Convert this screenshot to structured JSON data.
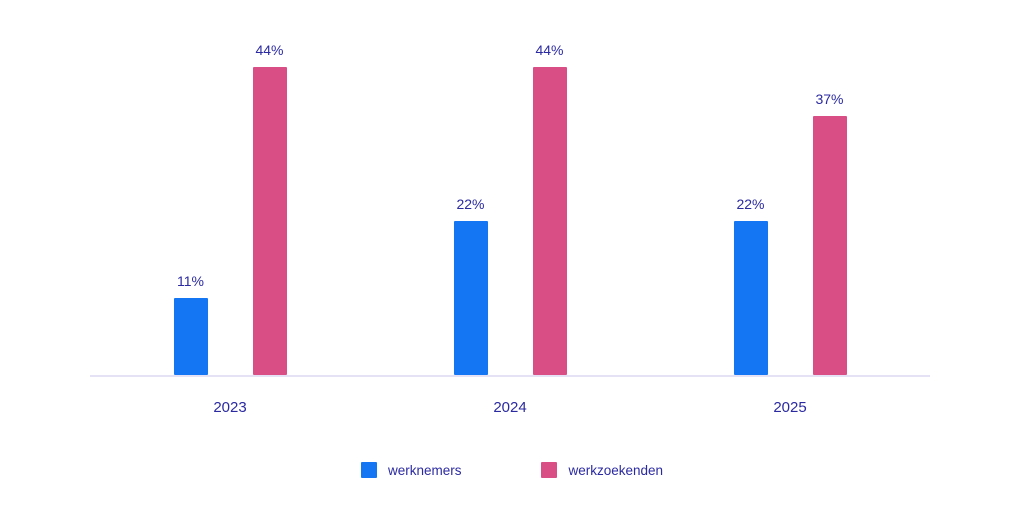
{
  "chart_data": {
    "type": "bar",
    "categories": [
      "2023",
      "2024",
      "2025"
    ],
    "series": [
      {
        "name": "werknemers",
        "color": "#1476f2",
        "values": [
          11,
          22,
          22
        ]
      },
      {
        "name": "werkzoekenden",
        "color": "#d94e84",
        "values": [
          44,
          44,
          37
        ]
      }
    ],
    "data_labels": {
      "werknemers": [
        "11%",
        "22%",
        "22%"
      ],
      "werkzoekenden": [
        "44%",
        "44%",
        "37%"
      ]
    },
    "title": "",
    "xlabel": "",
    "ylabel": "",
    "ylim": [
      0,
      50
    ],
    "value_suffix": "%",
    "grid": false,
    "legend_position": "bottom",
    "legend": [
      "werknemers",
      "werkzoekenden"
    ]
  },
  "colors": {
    "text": "#2b2aa1",
    "axis_line": "#e4e2f4",
    "background": "#ffffff",
    "series_blue": "#1476f2",
    "series_pink": "#d94e84"
  }
}
